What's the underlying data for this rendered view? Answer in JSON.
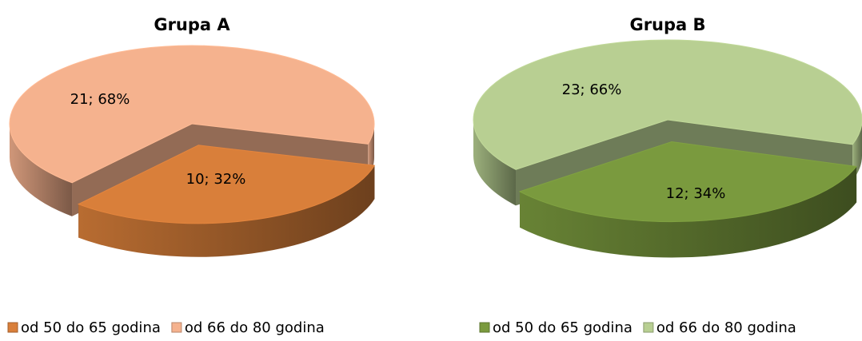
{
  "chart_data": [
    {
      "type": "pie",
      "title": "Grupa A",
      "categories": [
        "od 50 do 65 godina",
        "od 66 do 80 godina"
      ],
      "values": [
        10,
        21
      ],
      "value_labels": [
        "10; 32%",
        "21; 68%"
      ],
      "colors": [
        "#d97f3a",
        "#f5b28e"
      ],
      "legend": "bottom"
    },
    {
      "type": "pie",
      "title": "Grupa B",
      "categories": [
        "od 50 do 65 godina",
        "od 66 do 80 godina"
      ],
      "values": [
        12,
        23
      ],
      "value_labels": [
        "12; 34%",
        "23; 66%"
      ],
      "colors": [
        "#7a9a3e",
        "#b8cf92"
      ],
      "legend": "bottom"
    }
  ]
}
